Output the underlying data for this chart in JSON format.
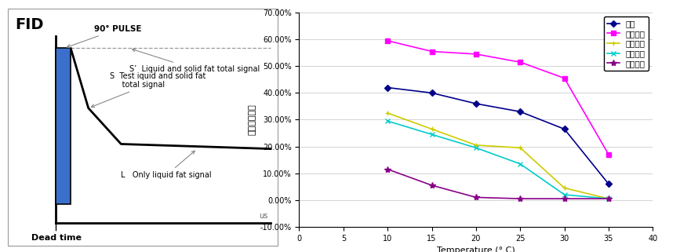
{
  "left_title": "FID",
  "left_xlabel": "Dead time",
  "left_xunit": "us",
  "left_labels": {
    "pulse": "90° PULSE",
    "S_prime": "S’  Liquid and solid fat total signal",
    "S_line1": "S  Test iquid and solid fat",
    "S_line2": "     total signal",
    "L": "L   Only liquid fat signal"
  },
  "right_xlabel": "Temperature (° C)",
  "right_ylabel": "固体脂肪含量",
  "right_ylim": [
    -0.1,
    0.7
  ],
  "right_xlim": [
    0,
    40
  ],
  "right_yticks": [
    -0.1,
    0.0,
    0.1,
    0.2,
    0.3,
    0.4,
    0.5,
    0.6,
    0.7
  ],
  "right_xticks": [
    0,
    5,
    10,
    15,
    20,
    25,
    30,
    35,
    40
  ],
  "series": [
    {
      "label": "原料",
      "color": "#00008B",
      "marker": "D",
      "markersize": 4,
      "x": [
        10,
        15,
        20,
        25,
        30,
        35
      ],
      "y": [
        0.42,
        0.4,
        0.36,
        0.33,
        0.265,
        0.06
      ]
    },
    {
      "label": "一次固体",
      "color": "#FF00FF",
      "marker": "s",
      "markersize": 4,
      "x": [
        10,
        15,
        20,
        25,
        30,
        35
      ],
      "y": [
        0.595,
        0.555,
        0.545,
        0.515,
        0.455,
        0.17
      ]
    },
    {
      "label": "二次固体",
      "color": "#cccc00",
      "marker": "+",
      "markersize": 5,
      "x": [
        10,
        15,
        20,
        25,
        30,
        35
      ],
      "y": [
        0.325,
        0.265,
        0.205,
        0.195,
        0.045,
        0.005
      ]
    },
    {
      "label": "一次液体",
      "color": "#00CCCC",
      "marker": "x",
      "markersize": 5,
      "x": [
        10,
        15,
        20,
        25,
        30,
        35
      ],
      "y": [
        0.295,
        0.245,
        0.195,
        0.135,
        0.02,
        0.005
      ]
    },
    {
      "label": "二次液体",
      "color": "#880088",
      "marker": "*",
      "markersize": 6,
      "x": [
        10,
        15,
        20,
        25,
        30,
        35
      ],
      "y": [
        0.115,
        0.055,
        0.01,
        0.005,
        0.005,
        0.005
      ]
    }
  ]
}
